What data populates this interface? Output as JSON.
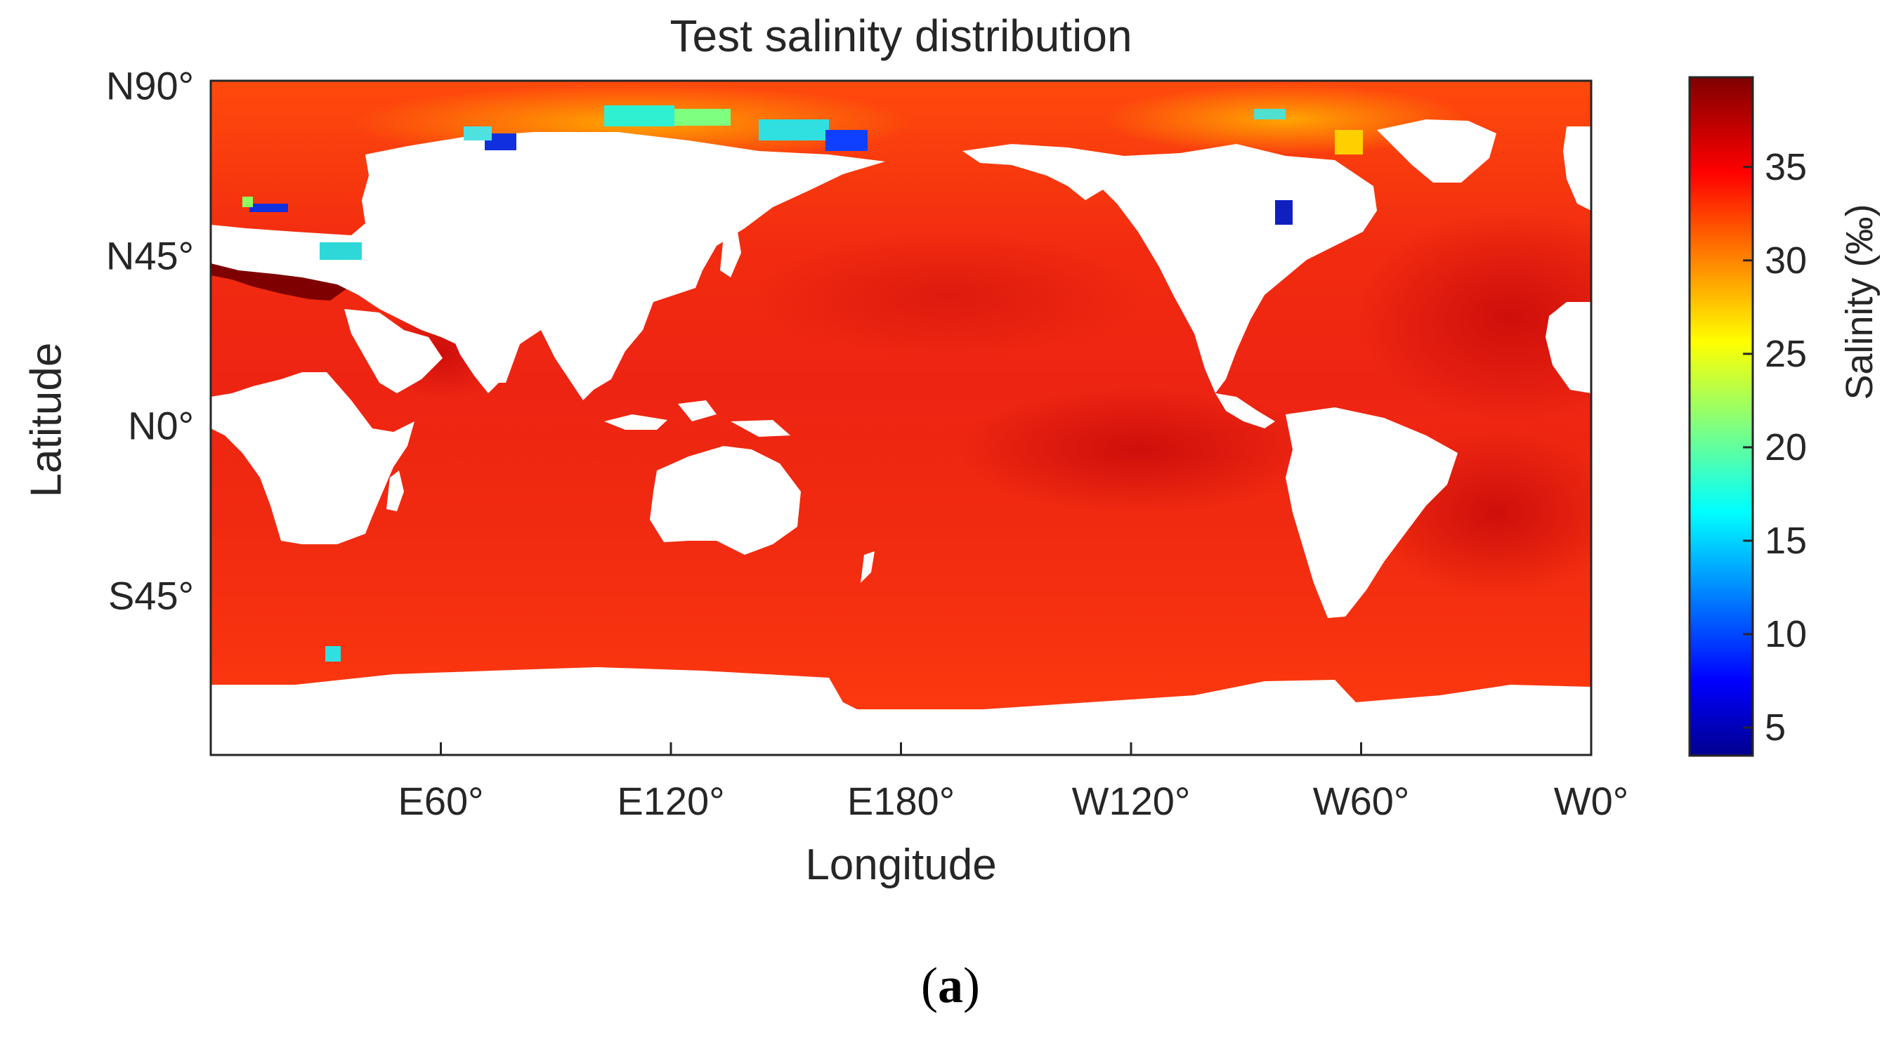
{
  "chart_data": {
    "type": "heatmap",
    "title": "Test salinity distribution",
    "xlabel": "Longitude",
    "ylabel": "Latitude",
    "x_ticks": [
      "E60°",
      "E120°",
      "E180°",
      "W120°",
      "W60°",
      "W0°"
    ],
    "y_ticks": [
      "N90°",
      "N45°",
      "N0°",
      "S45°"
    ],
    "colorbar": {
      "label": "Salinity (‰)",
      "ticks": [
        "5",
        "10",
        "15",
        "20",
        "25",
        "30",
        "35"
      ],
      "range": [
        3.5,
        39.8
      ],
      "colormap": "jet"
    },
    "summary_values": {
      "open_ocean_typical": 34.5,
      "subtropical_atlantic_high": 37.2,
      "mediterranean": 39.0,
      "arctic_coastal_low": 5.0,
      "background_land": "white"
    },
    "grid": false
  },
  "caption": {
    "open": "(",
    "letter": "a",
    "close": ")"
  },
  "colors": {
    "land": "#ffffff",
    "frame": "#262626"
  }
}
